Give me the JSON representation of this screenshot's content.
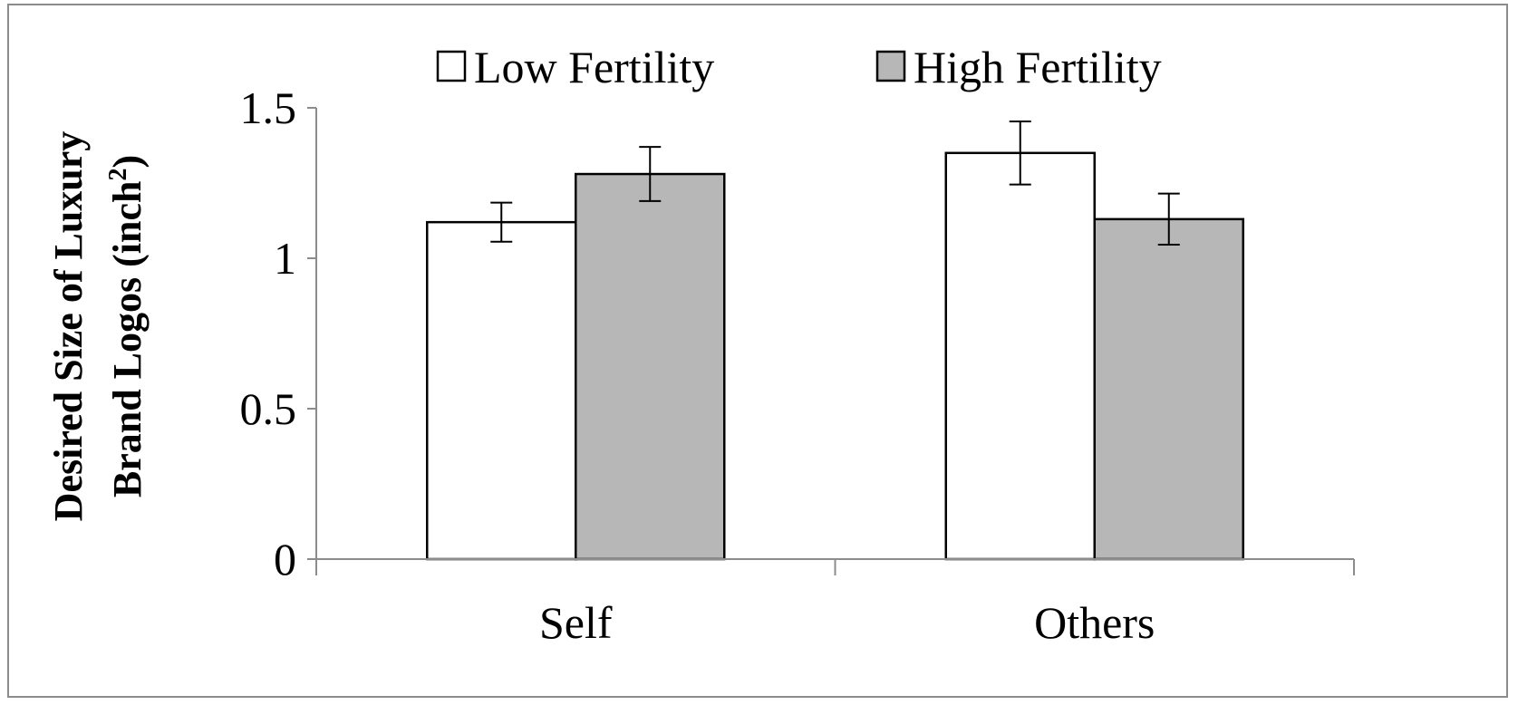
{
  "chart_data": {
    "type": "bar",
    "categories": [
      "Self",
      "Others"
    ],
    "series": [
      {
        "name": "Low Fertility",
        "values": [
          1.12,
          1.35
        ],
        "error": [
          0.065,
          0.105
        ],
        "color": "#ffffff"
      },
      {
        "name": "High Fertility",
        "values": [
          1.28,
          1.13
        ],
        "error": [
          0.09,
          0.085
        ],
        "color": "#b7b7b7"
      }
    ],
    "ylabel_line1": "Desired Size of Luxury",
    "ylabel_line2_prefix": "Brand Logos (inch",
    "ylabel_superscript": "2",
    "ylabel_line2_suffix": ")",
    "ylim": [
      0,
      1.5
    ],
    "yticks": [
      0,
      0.5,
      1,
      1.5
    ],
    "ytick_labels": [
      "0",
      "0.5",
      "1",
      "1.5"
    ],
    "grid": false,
    "legend_position": "top-center",
    "bar_edge_color": "#000000",
    "axis_color": "#8c8c8c"
  }
}
